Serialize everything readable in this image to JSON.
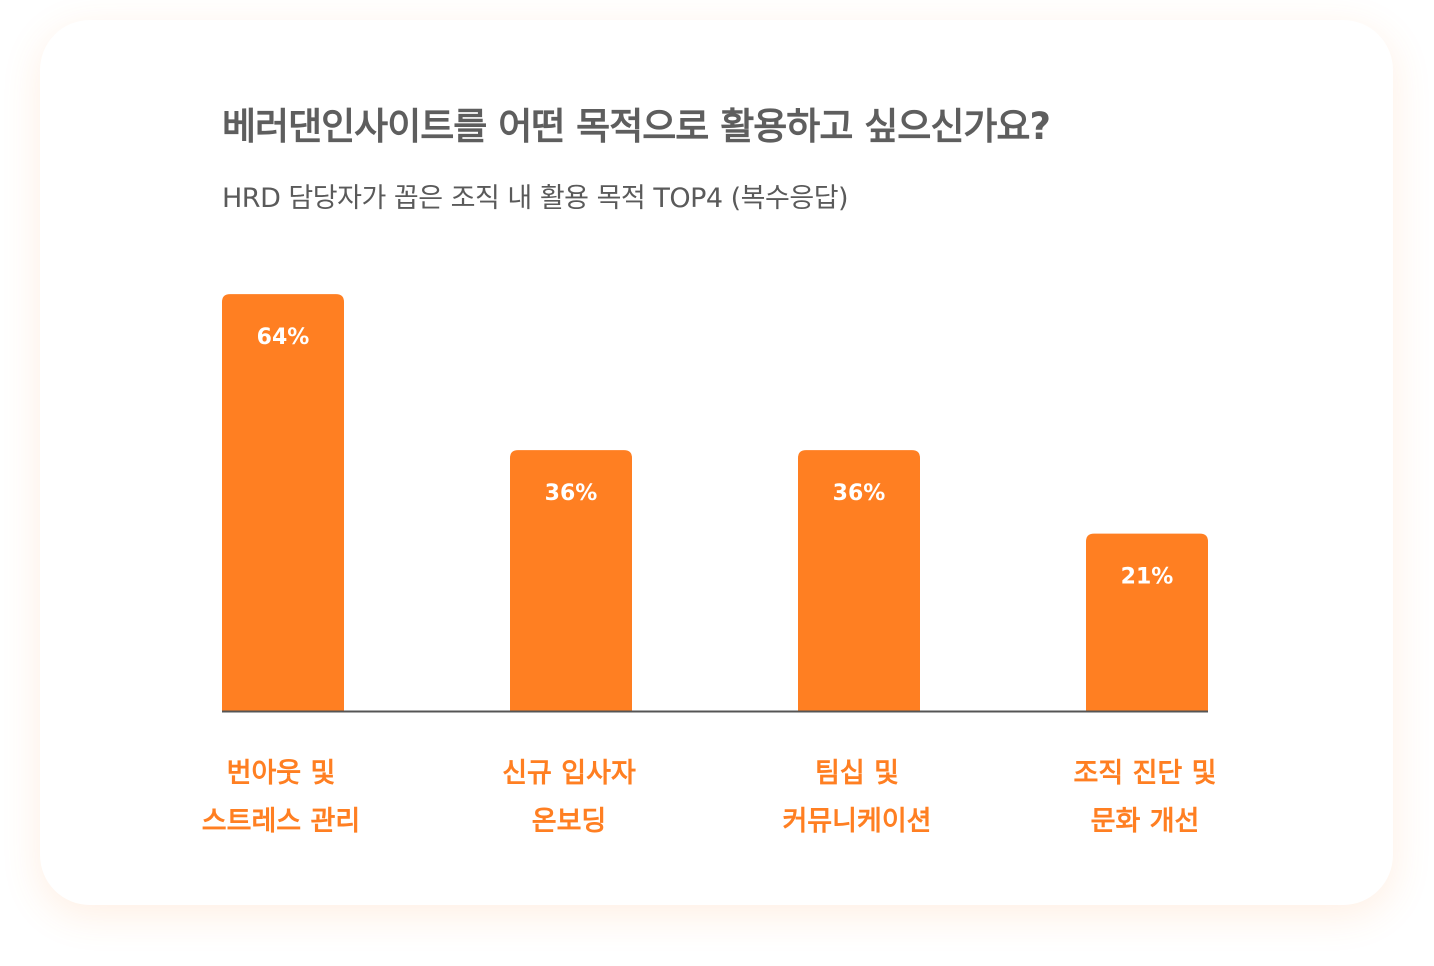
{
  "chart_data": {
    "type": "bar",
    "title": "베러댄인사이트를 어떤 목적으로 활용하고 싶으신가요?",
    "subtitle": "HRD 담당자가 꼽은 조직 내 활용 목적 TOP4 (복수응답)",
    "categories": [
      [
        "번아웃 및",
        "스트레스 관리"
      ],
      [
        "신규 입사자",
        "온보딩"
      ],
      [
        "팀십 및",
        "커뮤니케이션"
      ],
      [
        "조직 진단 및",
        "문화 개선"
      ]
    ],
    "values": [
      64,
      36,
      36,
      21
    ],
    "value_labels": [
      "64%",
      "36%",
      "36%",
      "21%"
    ],
    "xlabel": "",
    "ylabel": "",
    "grid": false,
    "colors": {
      "bar": "#ff7f22",
      "label": "#ff7f22",
      "axis": "#555555"
    }
  }
}
